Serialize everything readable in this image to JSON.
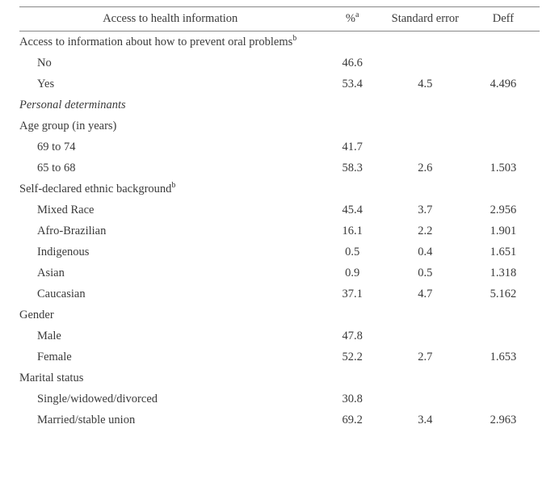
{
  "table": {
    "type": "table",
    "header": {
      "col1": "Access to health information",
      "col2_pre": "%",
      "col2_sup": "a",
      "col3": "Standard error",
      "col4": "Deff"
    },
    "columns_width_pct": [
      58,
      12,
      16,
      14
    ],
    "font_family": "Garamond/serif",
    "font_size_pt": 11,
    "text_color": "#3a3a3a",
    "background_color": "#ffffff",
    "border_color": "#888888",
    "rows": [
      {
        "kind": "section",
        "label_pre": "Access to information about how to prevent oral problems",
        "label_sup": "b"
      },
      {
        "kind": "data",
        "indent": 1,
        "label": "No",
        "pct": "46.6",
        "se": "",
        "deff": ""
      },
      {
        "kind": "data",
        "indent": 1,
        "label": "Yes",
        "pct": "53.4",
        "se": "4.5",
        "deff": "4.496"
      },
      {
        "kind": "section",
        "italic": true,
        "label": "Personal determinants"
      },
      {
        "kind": "section",
        "label": "Age group (in years)"
      },
      {
        "kind": "data",
        "indent": 1,
        "label": "69 to 74",
        "pct": "41.7",
        "se": "",
        "deff": ""
      },
      {
        "kind": "data",
        "indent": 1,
        "label": "65 to 68",
        "pct": "58.3",
        "se": "2.6",
        "deff": "1.503"
      },
      {
        "kind": "section",
        "label_pre": "Self-declared ethnic background",
        "label_sup": "b"
      },
      {
        "kind": "data",
        "indent": 1,
        "label": "Mixed Race",
        "pct": "45.4",
        "se": "3.7",
        "deff": "2.956"
      },
      {
        "kind": "data",
        "indent": 1,
        "label": "Afro-Brazilian",
        "pct": "16.1",
        "se": "2.2",
        "deff": "1.901"
      },
      {
        "kind": "data",
        "indent": 1,
        "label": "Indigenous",
        "pct": "0.5",
        "se": "0.4",
        "deff": "1.651"
      },
      {
        "kind": "data",
        "indent": 1,
        "label": "Asian",
        "pct": "0.9",
        "se": "0.5",
        "deff": "1.318"
      },
      {
        "kind": "data",
        "indent": 1,
        "label": "Caucasian",
        "pct": "37.1",
        "se": "4.7",
        "deff": "5.162"
      },
      {
        "kind": "section",
        "label": "Gender"
      },
      {
        "kind": "data",
        "indent": 1,
        "label": "Male",
        "pct": "47.8",
        "se": "",
        "deff": ""
      },
      {
        "kind": "data",
        "indent": 1,
        "label": "Female",
        "pct": "52.2",
        "se": "2.7",
        "deff": "1.653"
      },
      {
        "kind": "section",
        "label": "Marital status"
      },
      {
        "kind": "data",
        "indent": 1,
        "label": "Single/widowed/divorced",
        "pct": "30.8",
        "se": "",
        "deff": ""
      },
      {
        "kind": "data",
        "indent": 1,
        "label": "Married/stable union",
        "pct": "69.2",
        "se": "3.4",
        "deff": "2.963"
      }
    ]
  }
}
